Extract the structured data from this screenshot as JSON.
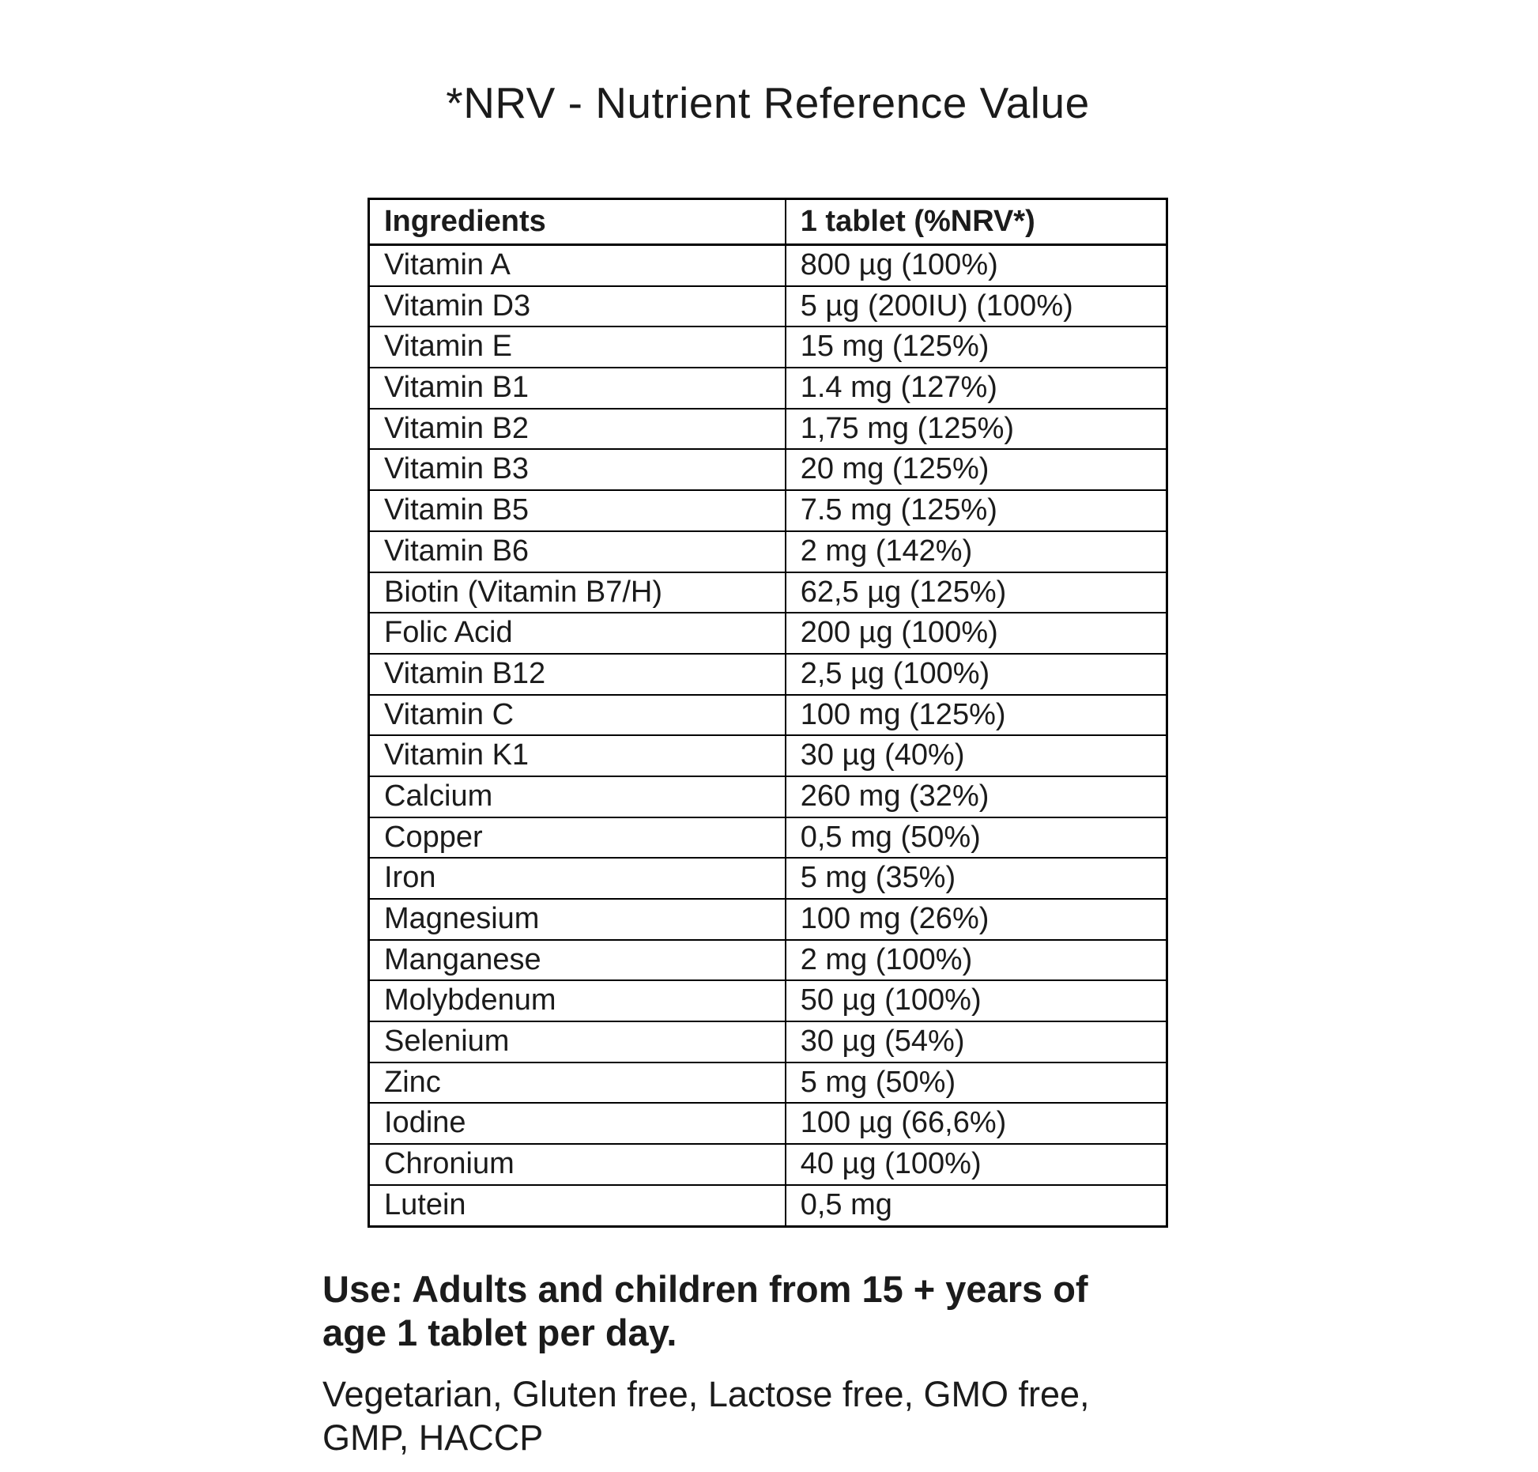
{
  "title": "*NRV - Nutrient Reference Value",
  "table": {
    "headers": [
      "Ingredients",
      "1 tablet (%NRV*)"
    ],
    "rows": [
      {
        "ingredient": "Vitamin A",
        "amount": "800 µg (100%)"
      },
      {
        "ingredient": "Vitamin D3",
        "amount": "5 µg (200IU) (100%)"
      },
      {
        "ingredient": "Vitamin E",
        "amount": "15 mg (125%)"
      },
      {
        "ingredient": "Vitamin B1",
        "amount": "1.4 mg (127%)"
      },
      {
        "ingredient": "Vitamin B2",
        "amount": "1,75 mg (125%)"
      },
      {
        "ingredient": "Vitamin B3",
        "amount": "20 mg (125%)"
      },
      {
        "ingredient": "Vitamin B5",
        "amount": "7.5 mg (125%)"
      },
      {
        "ingredient": "Vitamin B6",
        "amount": "2 mg (142%)"
      },
      {
        "ingredient": "Biotin (Vitamin B7/H)",
        "amount": "62,5 µg (125%)"
      },
      {
        "ingredient": "Folic Acid",
        "amount": "200 µg (100%)"
      },
      {
        "ingredient": "Vitamin B12",
        "amount": "2,5 µg (100%)"
      },
      {
        "ingredient": "Vitamin C",
        "amount": "100 mg (125%)"
      },
      {
        "ingredient": "Vitamin K1",
        "amount": "30 µg (40%)"
      },
      {
        "ingredient": "Calcium",
        "amount": "260 mg (32%)"
      },
      {
        "ingredient": "Copper",
        "amount": "0,5 mg (50%)"
      },
      {
        "ingredient": "Iron",
        "amount": "5 mg (35%)"
      },
      {
        "ingredient": "Magnesium",
        "amount": "100 mg (26%)"
      },
      {
        "ingredient": "Manganese",
        "amount": "2 mg (100%)"
      },
      {
        "ingredient": "Molybdenum",
        "amount": "50 µg (100%)"
      },
      {
        "ingredient": "Selenium",
        "amount": "30 µg (54%)"
      },
      {
        "ingredient": "Zinc",
        "amount": "5 mg (50%)"
      },
      {
        "ingredient": "Iodine",
        "amount": "100 µg (66,6%)"
      },
      {
        "ingredient": "Chronium",
        "amount": "40 µg (100%)"
      },
      {
        "ingredient": "Lutein",
        "amount": "0,5 mg"
      }
    ]
  },
  "notes": {
    "use": "Use: Adults and children from 15 + years of\nage 1 tablet per day.",
    "features": "Vegetarian, Gluten free, Lactose free, GMO free,\nGMP, HACCP"
  },
  "colors": {
    "text": "#1b1b1b",
    "border": "#000000",
    "background": "#ffffff"
  }
}
